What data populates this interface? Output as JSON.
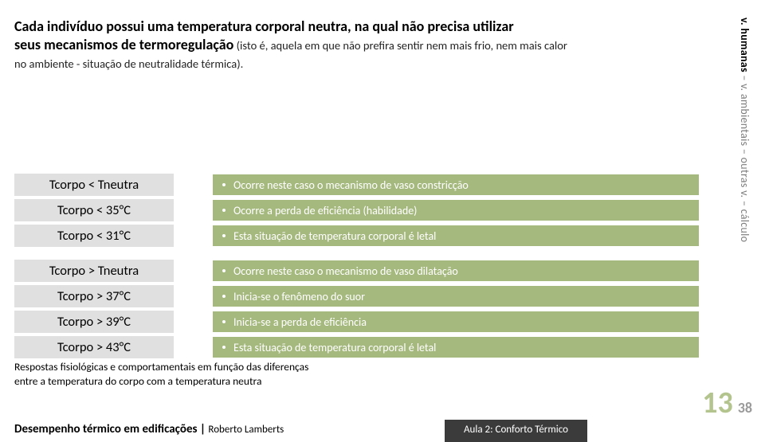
{
  "intro": {
    "line1a": "Cada indivíduo possui uma temperatura corporal neutra, na qual não precisa utilizar",
    "line1b": "seus mecanismos de termoregulação",
    "line1c": " (isto é, aquela em que não prefira sentir nem mais frio, nem mais calor",
    "line2": "no ambiente - situação de neutralidade térmica)."
  },
  "vertical": {
    "dark": "v. humanas",
    "rest": " – v. ambientais – outras v. – cálculo"
  },
  "rows_top": [
    {
      "left": "Tcorpo < Tneutra",
      "right": "Ocorre neste caso o mecanismo de vaso constricção"
    },
    {
      "left": "Tcorpo < 35°C",
      "right": "Ocorre a perda de eficiência (habilidade)"
    },
    {
      "left": "Tcorpo < 31°C",
      "right": "Esta situação de temperatura corporal é letal"
    }
  ],
  "rows_bottom": [
    {
      "left": "Tcorpo > Tneutra",
      "right": "Ocorre neste caso o mecanismo de vaso dilatação"
    },
    {
      "left": "Tcorpo > 37°C",
      "right": "Inicia-se o fenômeno do suor"
    },
    {
      "left": "Tcorpo > 39°C",
      "right": "Inicia-se a perda de eficiência"
    },
    {
      "left": "Tcorpo > 43°C",
      "right": "Esta situação de temperatura corporal é letal"
    }
  ],
  "caption": {
    "l1": "Respostas fisiológicas e comportamentais em função das diferenças",
    "l2": "entre a temperatura do corpo com a temperatura neutra"
  },
  "page": {
    "current": "13",
    "total": "38"
  },
  "footer": {
    "title": "Desempenho térmico em edificações",
    "bar": " | ",
    "author": "Roberto Lamberts",
    "chip": "Aula 2: Conforto Térmico"
  },
  "style": {
    "pill_bg": "#a5b97e",
    "pill_text": "#ffffff",
    "label_bg": "#e0e0e0",
    "pagenum_color": "#b4c48e",
    "chip_bg": "#3b3b3b",
    "vert_grey": "#7e7e7e"
  }
}
